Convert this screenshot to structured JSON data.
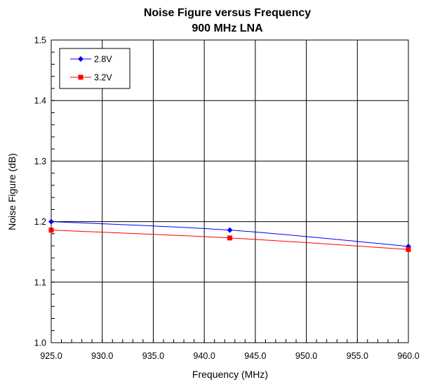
{
  "chart_data": {
    "type": "line",
    "title": "Noise Figure versus Frequency",
    "subtitle": "900 MHz LNA",
    "xlabel": "Frequency (MHz)",
    "ylabel": "Noise Figure (dB)",
    "xlim": [
      925.0,
      960.0
    ],
    "ylim": [
      1.0,
      1.5
    ],
    "x_ticks": [
      "925.0",
      "930.0",
      "935.0",
      "940.0",
      "945.0",
      "950.0",
      "955.0",
      "960.0"
    ],
    "y_ticks": [
      "1.0",
      "1.1",
      "1.2",
      "1.3",
      "1.4",
      "1.5"
    ],
    "grid": true,
    "legend_position": "top-left",
    "series": [
      {
        "name": "2.8V",
        "color": "#0000ff",
        "marker": "diamond",
        "x": [
          925.0,
          942.5,
          960.0
        ],
        "values": [
          1.2,
          1.186,
          1.159
        ]
      },
      {
        "name": "3.2V",
        "color": "#ff0000",
        "marker": "square",
        "x": [
          925.0,
          942.5,
          960.0
        ],
        "values": [
          1.186,
          1.173,
          1.154
        ]
      }
    ]
  }
}
